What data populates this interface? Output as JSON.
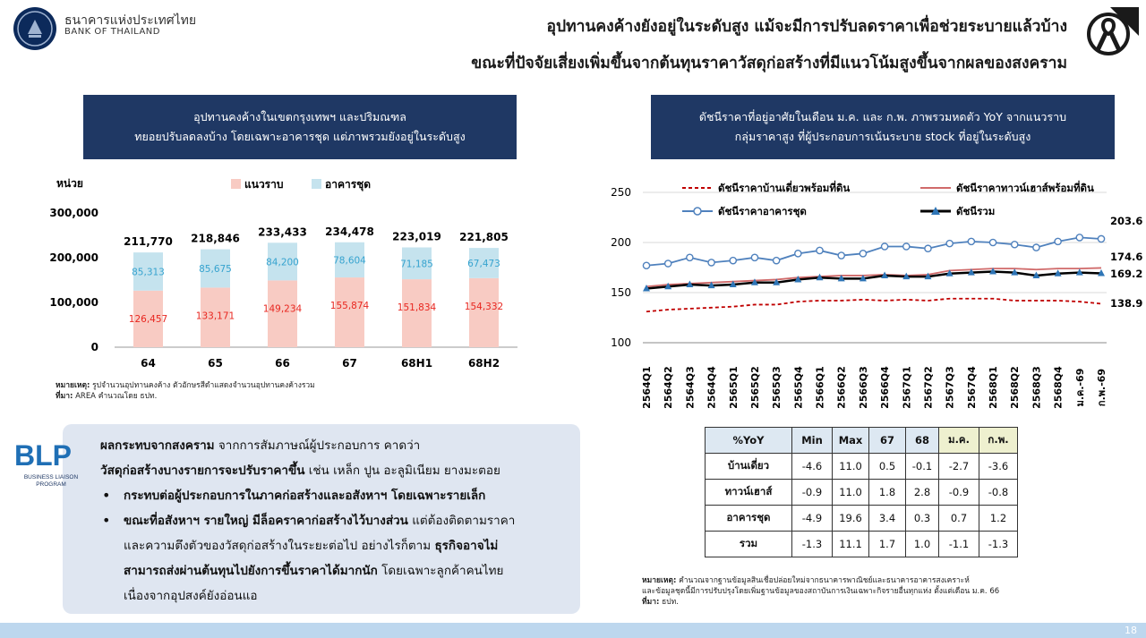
{
  "header": {
    "bank_name_th": "ธนาคารแห่งประเทศไทย",
    "bank_name_en": "BANK OF THAILAND",
    "title_line1": "อุปทานคงค้างยังอยู่ในระดับสูง แม้จะมีการปรับลดราคาเพื่อช่วยระบายแล้วบ้าง",
    "title_line2": "ขณะที่ปัจจัยเสี่ยงเพิ่มขึ้นจากต้นทุนราคาวัสดุก่อสร้างที่มีแนวโน้มสูงขึ้นจากผลของสงคราม"
  },
  "left_panel": {
    "heading_line1": "อุปทานคงค้างในเขตกรุงเทพฯ และปริมณฑล",
    "heading_line2": "ทยอยปรับลดลงบ้าง โดยเฉพาะอาคารชุด แต่ภาพรวมยังอยู่ในระดับสูง",
    "note_label": "หมายเหตุ:",
    "note_text": " รูปจำนวนอุปทานคงค้าง ตัวอักษรสีดำแสดงจำนวนอุปทานคงค้างรวม",
    "source_label": "ที่มา:",
    "source_text": " AREA คำนวณโดย ธปท."
  },
  "right_panel": {
    "heading_line1": "ดัชนีราคาที่อยู่อาศัยในเดือน ม.ค. และ ก.พ. ภาพรวมหดตัว YoY จากแนวราบ",
    "heading_line2": "กลุ่มราคาสูง ที่ผู้ประกอบการเน้นระบาย stock ที่อยู่ในระดับสูง",
    "note_label": "หมายเหตุ:",
    "note_line1": " คำนวณจากฐานข้อมูลสินเชื่อปล่อยใหม่จากธนาคารพาณิชย์และธนาคารอาคารสงเคราะห์",
    "note_line2": "และข้อมูลชุดนี้มีการปรับปรุงโดยเพิ่มฐานข้อมูลของสถาบันการเงินเฉพาะกิจรายอื่นทุกแห่ง ตั้งแต่เดือน ม.ค. 66",
    "source_label": "ที่มา:",
    "source_text": " ธปท."
  },
  "blp": {
    "logo_text": "BLP",
    "logo_sub1": "BUSINESS LIAISON",
    "logo_sub2": "PROGRAM",
    "intro_bold": "ผลกระทบจากสงคราม",
    "intro_text": " จากการสัมภาษณ์ผู้ประกอบการ คาดว่า",
    "line2_bold": "วัสดุก่อสร้างบางรายการจะปรับราคาขึ้น",
    "line2_text": " เช่น เหล็ก ปูน อะลูมิเนียม ยางมะตอย",
    "bullet1_bold": "กระทบต่อผู้ประกอบการในภาคก่อสร้างและอสังหาฯ โดยเฉพาะรายเล็ก",
    "bullet2_bold": "ขณะที่อสังหาฯ รายใหญ่ มีล็อคราคาก่อสร้างไว้บางส่วน",
    "bullet2_text1": " แต่ต้องติดตามราคา",
    "bullet2_text2": "และความตึงตัวของวัสดุก่อสร้างในระยะต่อไป อย่างไรก็ตาม ",
    "bullet2_bold2": "ธุรกิจอาจไม่",
    "bullet2_bold3": "สามารถส่งผ่านต้นทุนไปยังการขึ้นราคาได้มากนัก",
    "bullet2_text3": " โดยเฉพาะลูกค้าคนไทย",
    "bullet2_text4": "เนื่องจากอุปสงค์ยังอ่อนแอ"
  },
  "yoy_table": {
    "headers": [
      "%YoY",
      "Min",
      "Max",
      "67",
      "68",
      "ม.ค.",
      "ก.พ."
    ],
    "rows": [
      {
        "label": "บ้านเดี่ยว",
        "cells": [
          "-4.6",
          "11.0",
          "0.5",
          "-0.1",
          "-2.7",
          "-3.6"
        ]
      },
      {
        "label": "ทาวน์เฮาส์",
        "cells": [
          "-0.9",
          "11.0",
          "1.8",
          "2.8",
          "-0.9",
          "-0.8"
        ]
      },
      {
        "label": "อาคารชุด",
        "cells": [
          "-4.9",
          "19.6",
          "3.4",
          "0.3",
          "0.7",
          "1.2"
        ]
      },
      {
        "label": "รวม",
        "cells": [
          "-1.3",
          "11.1",
          "1.7",
          "1.0",
          "-1.1",
          "-1.3"
        ]
      }
    ]
  },
  "page_number": "18",
  "chart_data": [
    {
      "type": "bar",
      "stacked": true,
      "unit_label": "หน่วย",
      "categories": [
        "64",
        "65",
        "66",
        "67",
        "68H1",
        "68H2"
      ],
      "series": [
        {
          "name": "แนวราบ",
          "color": "#f8cbc3",
          "label_color": "#e8261f",
          "values": [
            126457,
            133171,
            149234,
            155874,
            151834,
            154332
          ],
          "labels": [
            "126,457",
            "133,171",
            "149,234",
            "155,874",
            "151,834",
            "154,332"
          ]
        },
        {
          "name": "อาคารชุด",
          "color": "#c5e3ee",
          "label_color": "#36a3cf",
          "values": [
            85313,
            85675,
            84200,
            78604,
            71185,
            67473
          ],
          "labels": [
            "85,313",
            "85,675",
            "84,200",
            "78,604",
            "71,185",
            "67,473"
          ]
        }
      ],
      "totals": [
        "211,770",
        "218,846",
        "233,433",
        "234,478",
        "223,019",
        "221,805"
      ],
      "ylim": [
        0,
        300000
      ],
      "yticks": [
        "0",
        "100,000",
        "200,000",
        "300,000"
      ],
      "legend_position": "top"
    },
    {
      "type": "line",
      "x": [
        "2564Q1",
        "2564Q2",
        "2564Q3",
        "2564Q4",
        "2565Q1",
        "2565Q2",
        "2565Q3",
        "2565Q4",
        "2566Q1",
        "2566Q2",
        "2566Q3",
        "2566Q4",
        "2567Q1",
        "2567Q2",
        "2567Q3",
        "2567Q4",
        "2568Q1",
        "2568Q2",
        "2568Q3",
        "2568Q4",
        "ม.ค.-69",
        "ก.พ.-69"
      ],
      "ylim": [
        100,
        250
      ],
      "yticks": [
        "100",
        "150",
        "200",
        "250"
      ],
      "legend_position": "top",
      "series": [
        {
          "name": "ดัชนีราคาบ้านเดี่ยวพร้อมที่ดิน",
          "color": "#c00000",
          "style": "dashed",
          "values": [
            131,
            133,
            134,
            135,
            136,
            138,
            138,
            141,
            142,
            142,
            143,
            142,
            143,
            142,
            144,
            144,
            144,
            142,
            142,
            142,
            141,
            138.9
          ],
          "end_label": "138.9"
        },
        {
          "name": "ดัชนีราคาทาวน์เฮาส์พร้อมที่ดิน",
          "color": "#d06a6a",
          "style": "solid",
          "values": [
            156,
            158,
            159,
            160,
            161,
            162,
            163,
            165,
            166,
            167,
            167,
            168,
            167,
            168,
            172,
            173,
            174,
            174,
            173,
            174,
            174,
            174.6
          ],
          "end_label": "174.6"
        },
        {
          "name": "ดัชนีราคาอาคารชุด",
          "color": "#4f81bd",
          "style": "circle",
          "values": [
            177,
            179,
            185,
            180,
            182,
            185,
            182,
            189,
            192,
            187,
            189,
            196,
            196,
            194,
            199,
            201,
            200,
            198,
            195,
            201,
            205,
            203.6
          ],
          "end_label": "203.6"
        },
        {
          "name": "ดัชนีรวม",
          "color": "#000000",
          "style": "triangle",
          "values": [
            154,
            156,
            158,
            157,
            158,
            160,
            160,
            163,
            165,
            164,
            164,
            167,
            166,
            166,
            169,
            170,
            171,
            170,
            167,
            169,
            170,
            169.2
          ],
          "end_label": "169.2"
        }
      ]
    }
  ]
}
